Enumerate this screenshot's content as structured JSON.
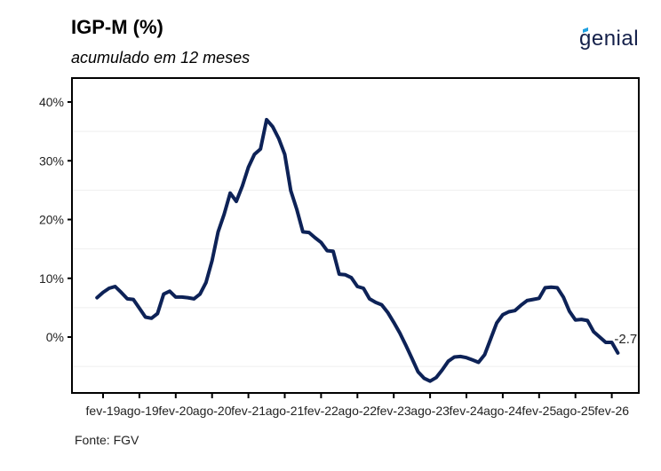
{
  "header": {
    "title": "IGP-M (%)",
    "subtitle": "acumulado em 12 meses",
    "logo_text": "genial"
  },
  "footer": {
    "source": "Fonte: FGV"
  },
  "colors": {
    "line": "#0d2257",
    "logo": "#14204a",
    "logo_accent": "#1ea0e0",
    "gridline": "#efefef"
  },
  "chart_data": {
    "type": "line",
    "title": "IGP-M (%)",
    "subtitle": "acumulado em 12 meses",
    "xlabel": "",
    "ylabel": "",
    "ylim": [
      -9.5,
      44
    ],
    "yticks": [
      0,
      10,
      20,
      30,
      40
    ],
    "ytick_labels": [
      "0%",
      "10%",
      "20%",
      "30%",
      "40%"
    ],
    "minor_gridlines": [
      -5,
      5,
      15,
      25,
      35
    ],
    "grid": true,
    "xtick_labels": [
      "fev-19",
      "ago-19",
      "fev-20",
      "ago-20",
      "fev-21",
      "ago-21",
      "fev-22",
      "ago-22",
      "fev-23",
      "ago-23",
      "fev-24",
      "ago-24",
      "fev-25",
      "ago-25",
      "fev-26"
    ],
    "x_start": "jan-19",
    "x_end": "fev-26",
    "annotation": "-2.7",
    "series": [
      {
        "name": "IGP-M acumulado 12 meses",
        "values": [
          6.7,
          7.6,
          8.3,
          8.6,
          7.6,
          6.5,
          6.4,
          4.9,
          3.4,
          3.2,
          4.0,
          7.3,
          7.8,
          6.8,
          6.8,
          6.7,
          6.5,
          7.3,
          9.3,
          13.0,
          17.9,
          20.9,
          24.5,
          23.1,
          25.7,
          28.9,
          31.1,
          32.0,
          37.0,
          35.8,
          33.8,
          31.1,
          24.9,
          21.7,
          17.9,
          17.8,
          16.9,
          16.1,
          14.7,
          14.6,
          10.7,
          10.6,
          10.1,
          8.6,
          8.3,
          6.5,
          5.9,
          5.5,
          4.2,
          2.5,
          0.7,
          -1.4,
          -3.6,
          -5.9,
          -7.0,
          -7.5,
          -6.9,
          -5.6,
          -4.1,
          -3.4,
          -3.3,
          -3.5,
          -3.9,
          -4.3,
          -3.0,
          -0.3,
          2.4,
          3.8,
          4.3,
          4.5,
          5.4,
          6.2,
          6.4,
          6.6,
          8.4,
          8.5,
          8.4,
          6.8,
          4.4,
          2.9,
          3.0,
          2.8,
          0.9,
          0.0,
          -0.9,
          -0.9,
          -2.7
        ]
      }
    ]
  }
}
